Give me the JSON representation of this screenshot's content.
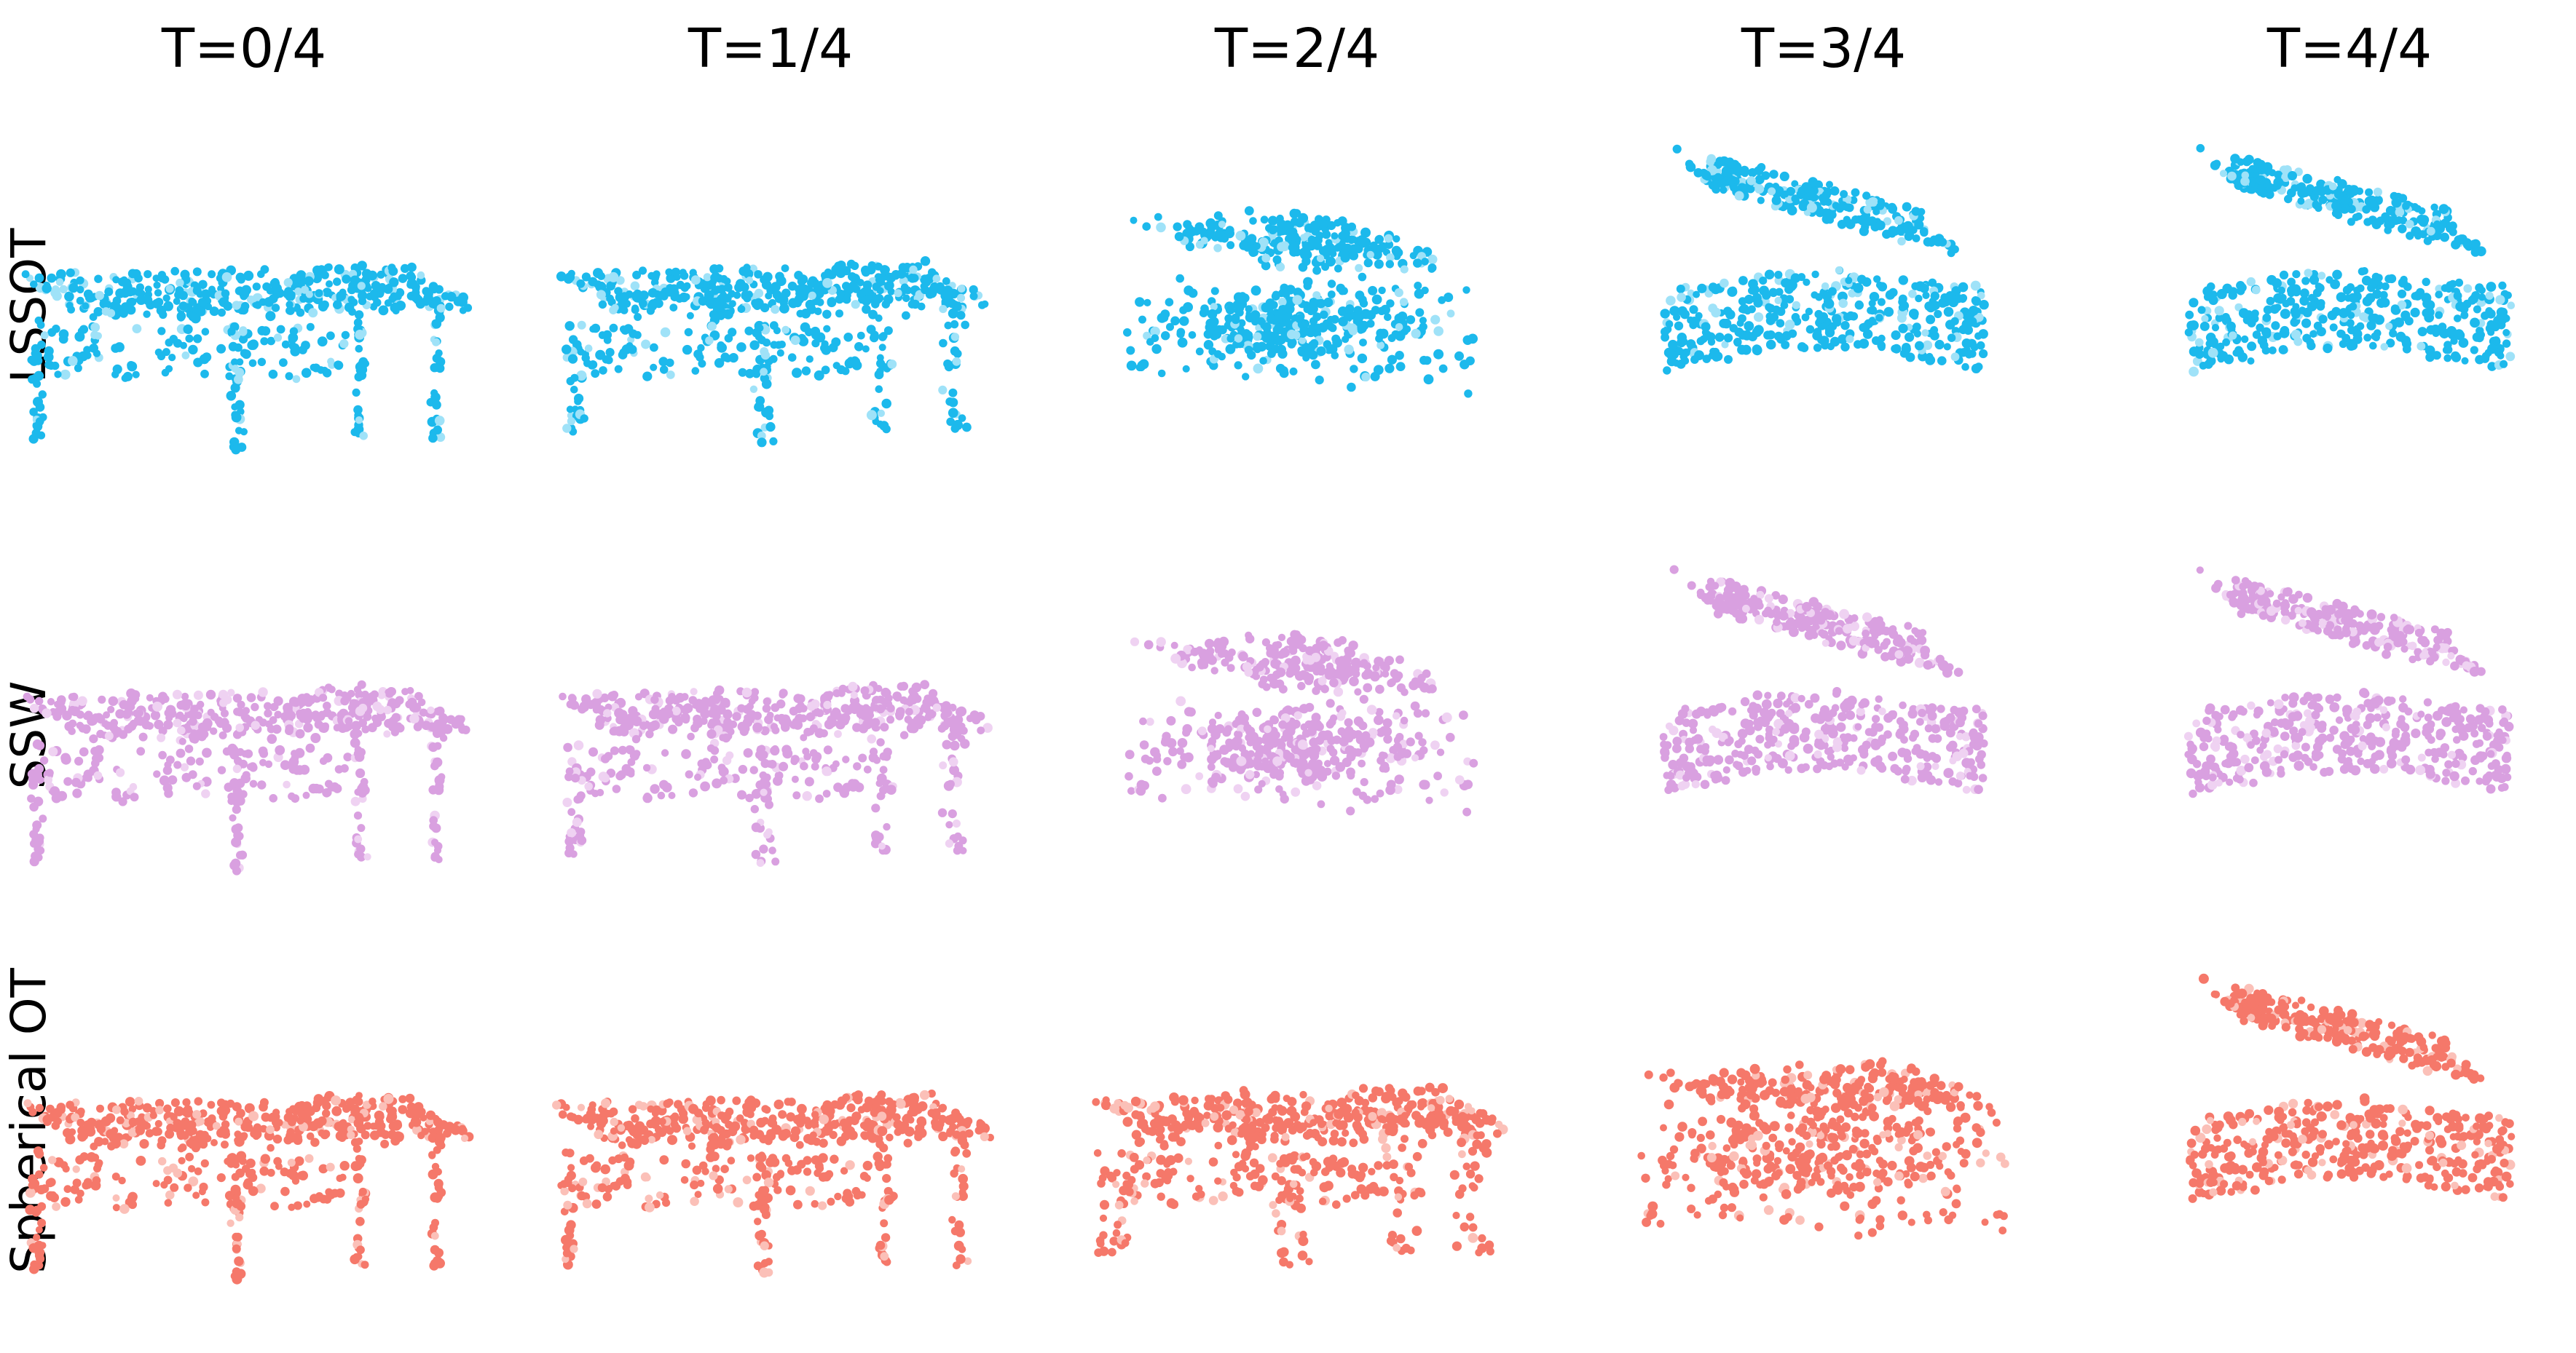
{
  "figure": {
    "column_titles": [
      "T=0/4",
      "T=1/4",
      "T=2/4",
      "T=3/4",
      "T=4/4"
    ],
    "rows": [
      {
        "label": "LSSOT",
        "color": "#1cb9ec",
        "pale_color": "#9fe2f8"
      },
      {
        "label": "SSW",
        "color": "#d9a0e0",
        "pale_color": "#efd2f2"
      },
      {
        "label": "Spherical OT",
        "color": "#f5786a",
        "pale_color": "#fbc0b8"
      }
    ],
    "shapes": {
      "source": "table point cloud",
      "target": "grand piano point cloud"
    }
  }
}
